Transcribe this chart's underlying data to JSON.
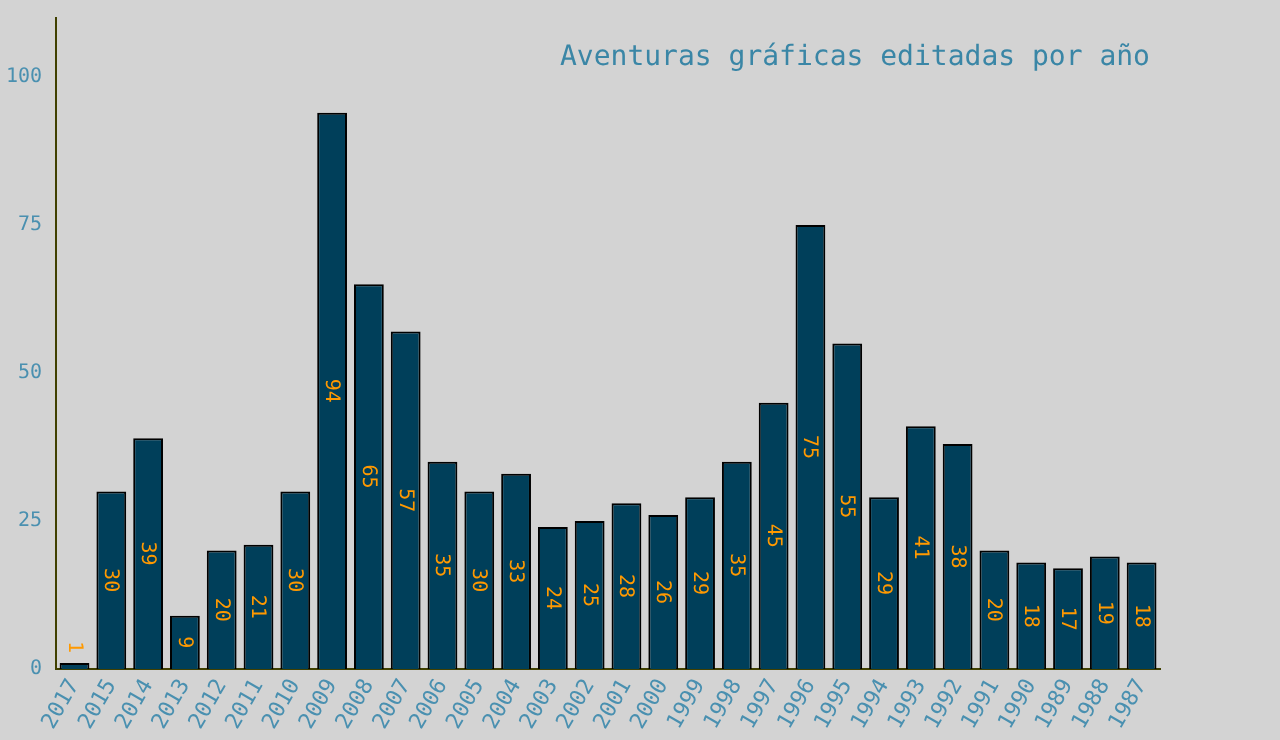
{
  "chart_data": {
    "type": "bar",
    "title": "Aventuras gráficas editadas por año",
    "categories": [
      "2017",
      "2015",
      "2014",
      "2013",
      "2012",
      "2011",
      "2010",
      "2009",
      "2008",
      "2007",
      "2006",
      "2005",
      "2004",
      "2003",
      "2002",
      "2001",
      "2000",
      "1999",
      "1998",
      "1997",
      "1996",
      "1995",
      "1994",
      "1993",
      "1992",
      "1991",
      "1990",
      "1989",
      "1988",
      "1987"
    ],
    "values": [
      1,
      30,
      39,
      9,
      20,
      21,
      30,
      94,
      65,
      57,
      35,
      30,
      33,
      24,
      25,
      28,
      26,
      29,
      35,
      45,
      75,
      55,
      29,
      41,
      38,
      20,
      18,
      17,
      19,
      18
    ],
    "color": "#003f5a",
    "ylim": [
      0,
      110
    ],
    "yticks": [
      0,
      25,
      50,
      75,
      100
    ],
    "grid": false,
    "data_labels": true
  }
}
